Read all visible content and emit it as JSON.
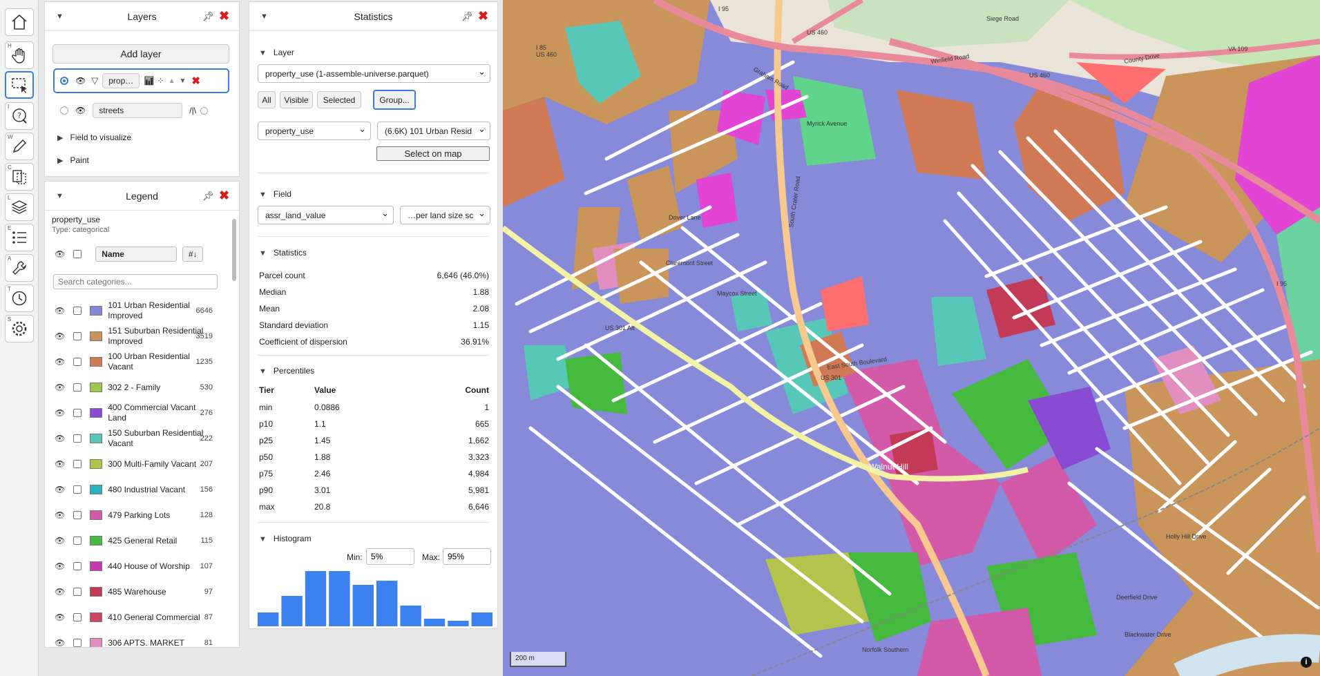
{
  "toolbar": {
    "hotkeys": [
      "",
      "H",
      "",
      "I",
      "W",
      "C",
      "L",
      "E",
      "A",
      "T",
      "S"
    ]
  },
  "layers_panel": {
    "title": "Layers",
    "add_layer": "Add layer",
    "layers": [
      {
        "name": "prop…",
        "selected": true
      },
      {
        "name": "streets",
        "selected": false
      }
    ],
    "sections": [
      "Field to visualize",
      "Paint"
    ]
  },
  "legend": {
    "title": "Legend",
    "field": "property_use",
    "type": "Type: categorical",
    "sort_label": "Name",
    "sort_icon": "#↓",
    "search_placeholder": "Search categories...",
    "items": [
      {
        "label": "101 Urban Residential Improved",
        "count": "6646",
        "color": "#8486d6"
      },
      {
        "label": "151 Suburban Residential Improved",
        "count": "3519",
        "color": "#c9955a"
      },
      {
        "label": "100 Urban Residential Vacant",
        "count": "1235",
        "color": "#d07a55"
      },
      {
        "label": "302 2 - Family",
        "count": "530",
        "color": "#9cc94a"
      },
      {
        "label": "400 Commercial Vacant Land",
        "count": "276",
        "color": "#8a4bd3"
      },
      {
        "label": "150 Suburban Residential Vacant",
        "count": "222",
        "color": "#57c7b8"
      },
      {
        "label": "300 Multi-Family Vacant",
        "count": "207",
        "color": "#b3c34c"
      },
      {
        "label": "480 Industrial Vacant",
        "count": "156",
        "color": "#27b3c0"
      },
      {
        "label": "479 Parking Lots",
        "count": "128",
        "color": "#d25aa8"
      },
      {
        "label": "425 General Retail",
        "count": "115",
        "color": "#46b93f"
      },
      {
        "label": "440 House of Worship",
        "count": "107",
        "color": "#c637b5"
      },
      {
        "label": "485 Warehouse",
        "count": "97",
        "color": "#c33a56"
      },
      {
        "label": "410 General Commercial",
        "count": "87",
        "color": "#cf4463"
      },
      {
        "label": "306 APTS. MARKET",
        "count": "81",
        "color": "#e08fc0"
      }
    ]
  },
  "statistics": {
    "title": "Statistics",
    "layer_section": "Layer",
    "layer_select": "property_use (1-assemble-universe.parquet)",
    "filter_buttons": [
      "All",
      "Visible",
      "Selected",
      "Group..."
    ],
    "group_field": "property_use",
    "group_value": "(6.6K) 101 Urban Resid",
    "select_on_map": "Select on map",
    "field_section": "Field",
    "field_select": "assr_land_value",
    "field_norm": "…per land size sc",
    "stats_section": "Statistics",
    "stats": [
      {
        "label": "Parcel count",
        "value": "6,646 (46.0%)"
      },
      {
        "label": "Median",
        "value": "1.88"
      },
      {
        "label": "Mean",
        "value": "2.08"
      },
      {
        "label": "Standard deviation",
        "value": "1.15"
      },
      {
        "label": "Coefficient of dispersion",
        "value": "36.91%"
      }
    ],
    "percentiles_section": "Percentiles",
    "pct_headers": [
      "Tier",
      "Value",
      "Count"
    ],
    "percentiles": [
      {
        "tier": "min",
        "value": "0.0886",
        "count": "1"
      },
      {
        "tier": "p10",
        "value": "1.1",
        "count": "665"
      },
      {
        "tier": "p25",
        "value": "1.45",
        "count": "1,662"
      },
      {
        "tier": "p50",
        "value": "1.88",
        "count": "3,323"
      },
      {
        "tier": "p75",
        "value": "2.46",
        "count": "4,984"
      },
      {
        "tier": "p90",
        "value": "3.01",
        "count": "5,981"
      },
      {
        "tier": "max",
        "value": "20.8",
        "count": "6,646"
      }
    ],
    "histogram_section": "Histogram",
    "min_label": "Min:",
    "min_value": "5%",
    "max_label": "Max:",
    "max_value": "95%",
    "histogram_values": [
      20,
      44,
      80,
      80,
      60,
      66,
      30,
      11,
      8,
      20
    ],
    "histogram_color": "#3b82f0"
  },
  "map": {
    "scale": "200 m",
    "labels": [
      "I 95",
      "US 460",
      "I 85",
      "US 460",
      "Winfield Road",
      "County Drive",
      "VA 109",
      "US 460",
      "Graham Road",
      "Myrick Avenue",
      "Dover Lane",
      "Claremont Street",
      "Maycox Street",
      "East South Boulevard",
      "South Crater Road",
      "US 301",
      "Walnut Hill",
      "Deerfield Drive",
      "Blackwater Drive",
      "Holly Hill Drive",
      "Norfolk Southern",
      "I 95",
      "Siege Road",
      "US 301 Alt"
    ]
  }
}
